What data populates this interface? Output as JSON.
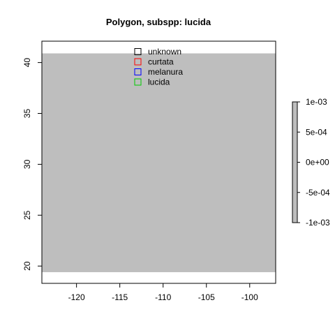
{
  "chart_data": {
    "type": "map",
    "title": "Polygon, subspp: lucida",
    "x_ticks": [
      -120,
      -115,
      -110,
      -105,
      -100
    ],
    "y_ticks": [
      20,
      25,
      30,
      35,
      40
    ],
    "xlim": [
      -124,
      -97
    ],
    "ylim": [
      18.3,
      42.1
    ],
    "raster": {
      "extent": {
        "xmin": -124,
        "xmax": -97,
        "ymin": 19.4,
        "ymax": 40.9
      },
      "color": "#bebebe",
      "value": 0
    },
    "legend": {
      "placement": "top",
      "entries": [
        {
          "label": "unknown",
          "color": "#000000"
        },
        {
          "label": "curtata",
          "color": "#ff0000"
        },
        {
          "label": "melanura",
          "color": "#0000ff"
        },
        {
          "label": "lucida",
          "color": "#00cc00"
        }
      ]
    },
    "colorbar": {
      "labels": [
        "1e-03",
        "5e-04",
        "0e+00",
        "-5e-04",
        "-1e-03"
      ],
      "values": [
        0.001,
        0.0005,
        0,
        -0.0005,
        -0.001
      ],
      "color": "#bebebe"
    }
  }
}
